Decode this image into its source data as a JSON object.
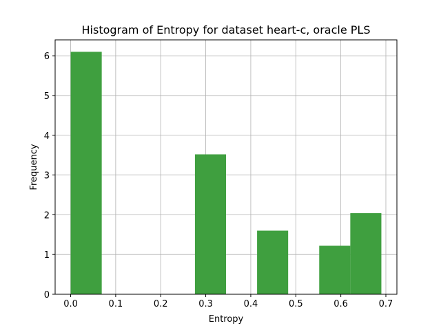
{
  "chart_data": {
    "type": "bar",
    "title": "Histogram of Entropy for dataset heart-c, oracle PLS",
    "xlabel": "Entropy",
    "ylabel": "Frequency",
    "xlim": [
      -0.0345,
      0.7245
    ],
    "ylim": [
      0,
      6.4
    ],
    "x_ticks": [
      0.0,
      0.1,
      0.2,
      0.3,
      0.4,
      0.5,
      0.6,
      0.7
    ],
    "x_tick_labels": [
      "0.0",
      "0.1",
      "0.2",
      "0.3",
      "0.4",
      "0.5",
      "0.6",
      "0.7"
    ],
    "y_ticks": [
      0,
      1,
      2,
      3,
      4,
      5,
      6
    ],
    "y_tick_labels": [
      "0",
      "1",
      "2",
      "3",
      "4",
      "5",
      "6"
    ],
    "grid": true,
    "bar_color": "#3f9f3f",
    "bins": [
      {
        "x0": 0.0,
        "x1": 0.069,
        "value": 6.1
      },
      {
        "x0": 0.069,
        "x1": 0.138,
        "value": 0
      },
      {
        "x0": 0.138,
        "x1": 0.207,
        "value": 0
      },
      {
        "x0": 0.207,
        "x1": 0.276,
        "value": 0
      },
      {
        "x0": 0.276,
        "x1": 0.345,
        "value": 3.52
      },
      {
        "x0": 0.345,
        "x1": 0.414,
        "value": 0
      },
      {
        "x0": 0.414,
        "x1": 0.483,
        "value": 1.6
      },
      {
        "x0": 0.483,
        "x1": 0.552,
        "value": 0
      },
      {
        "x0": 0.552,
        "x1": 0.621,
        "value": 1.22
      },
      {
        "x0": 0.621,
        "x1": 0.69,
        "value": 2.04
      }
    ]
  }
}
